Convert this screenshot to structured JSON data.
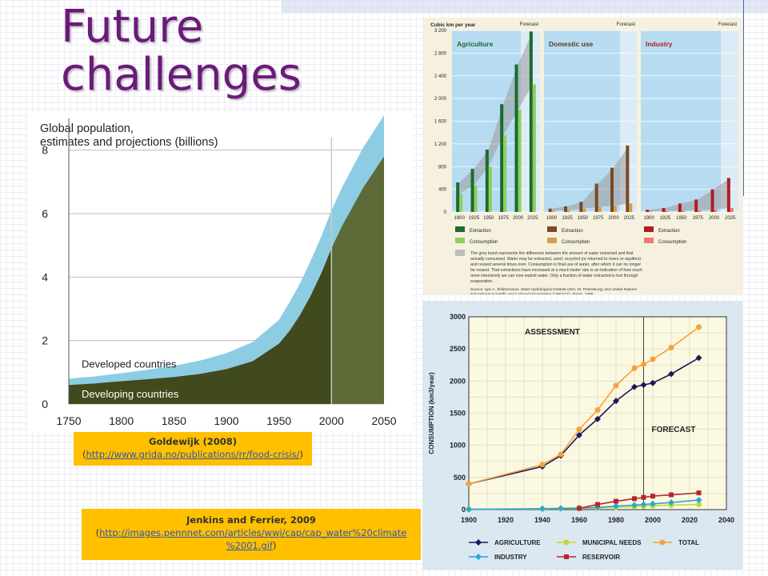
{
  "slide": {
    "title_line1": "Future",
    "title_line2": "challenges",
    "caption1": {
      "author": "Goldewijk (2008)",
      "open": "(",
      "link": "http://www.grida.no/publications/rr/food-crisis/",
      "close": ")"
    },
    "caption2": {
      "author": "Jenkins and Ferrier, 2009",
      "open": "(",
      "link_line1": "http://images.pennnet.com/articles/wwi/cap/cap_water%20climate",
      "link_line2": "%2001.gif",
      "close": ")"
    }
  },
  "chart_data": [
    {
      "type": "area",
      "title": "Global population,",
      "subtitle": "estimates and projections (billions)",
      "x": [
        1750,
        1775,
        1800,
        1825,
        1850,
        1875,
        1900,
        1925,
        1950,
        1960,
        1970,
        1980,
        1990,
        2000,
        2010,
        2020,
        2030,
        2040,
        2050
      ],
      "series": [
        {
          "name": "Developing countries",
          "values": [
            0.6,
            0.65,
            0.72,
            0.78,
            0.85,
            0.95,
            1.1,
            1.35,
            1.9,
            2.3,
            2.8,
            3.4,
            4.1,
            4.9,
            5.6,
            6.2,
            6.8,
            7.3,
            7.8
          ]
        },
        {
          "name": "Developed countries",
          "values": [
            0.2,
            0.22,
            0.25,
            0.3,
            0.35,
            0.42,
            0.5,
            0.6,
            0.75,
            0.9,
            1.0,
            1.1,
            1.15,
            1.2,
            1.22,
            1.25,
            1.27,
            1.28,
            1.3
          ]
        }
      ],
      "xticks": [
        "1750",
        "1800",
        "1850",
        "1900",
        "1950",
        "2000",
        "2050"
      ],
      "yticks": [
        "0",
        "2",
        "4",
        "6",
        "8"
      ],
      "ylim": [
        0,
        9
      ],
      "forecast_from": 2000,
      "colors": {
        "developing": "#404a1c",
        "developed": "#8ccde4",
        "forecast_shade": "#5d6a38"
      }
    },
    {
      "type": "bar",
      "ylabel": "Cubic km per year",
      "forecast_label": "Forecast",
      "categories": [
        "1900",
        "1925",
        "1950",
        "1975",
        "2000",
        "2025"
      ],
      "yticks": [
        "0",
        "400",
        "800",
        "1 200",
        "1 600",
        "2 000",
        "2 400",
        "2 800",
        "3 200"
      ],
      "ylim": [
        0,
        3200
      ],
      "panels": [
        {
          "name": "Agriculture",
          "extraction": [
            520,
            760,
            1100,
            1900,
            2600,
            3180
          ],
          "consumption": [
            320,
            470,
            800,
            1350,
            1800,
            2250
          ],
          "colors": [
            "#1a6b2e",
            "#8fcf5a"
          ],
          "label_color": "#1a6b2e"
        },
        {
          "name": "Domestic use",
          "extraction": [
            60,
            100,
            180,
            500,
            780,
            1170
          ],
          "consumption": [
            20,
            30,
            60,
            90,
            110,
            150
          ],
          "colors": [
            "#7a4a24",
            "#d89b4a"
          ],
          "label_color": "#5a3a1a"
        },
        {
          "name": "Industry",
          "extraction": [
            40,
            70,
            150,
            220,
            400,
            600
          ],
          "consumption": [
            10,
            15,
            20,
            30,
            45,
            70
          ],
          "colors": [
            "#b01c24",
            "#ef7a74"
          ],
          "label_color": "#b01c24"
        }
      ],
      "legend": {
        "extraction": "Extraction",
        "consumption": "Consumption",
        "note": "The grey band represents the difference between the amount of water extracted and that actually consumed. Water may be extracted, used, recycled (or returned to rivers or aquifers) and reused several times over. Consumption is final use of water, after which it can no longer be reused. That extractions have increased at a much faster rate is an indication of how much more intensively we can now exploit water. Only a fraction of water extracted is lost through evaporation.",
        "source": "Source: Igor A. Shiklomanov, State Hydrological Institute (SHI, St. Petersburg) and United Nations Educational,Scientific and Cultural Organisation (UNESCO, Paris), 1999."
      }
    },
    {
      "type": "line",
      "ylabel": "CONSUMPTION (km3/year)",
      "annotations": [
        "ASSESSMENT",
        "FORECAST"
      ],
      "xlim": [
        1900,
        2040
      ],
      "ylim": [
        0,
        3000
      ],
      "xticks": [
        "1900",
        "1920",
        "1940",
        "1960",
        "1980",
        "2000",
        "2020",
        "2040"
      ],
      "yticks": [
        "0",
        "500",
        "1000",
        "1500",
        "2000",
        "2500",
        "3000"
      ],
      "forecast_from": 1995,
      "series": [
        {
          "name": "AGRICULTURE",
          "x": [
            1900,
            1940,
            1950,
            1960,
            1970,
            1980,
            1990,
            1995,
            2000,
            2010,
            2025
          ],
          "values": [
            400,
            670,
            840,
            1160,
            1410,
            1690,
            1910,
            1940,
            1970,
            2110,
            2360
          ],
          "color": "#1a1a5e",
          "marker": "diamond"
        },
        {
          "name": "MUNICIPAL NEEDS",
          "x": [
            1900,
            1940,
            1950,
            1960,
            1970,
            1980,
            1990,
            1995,
            2000,
            2010,
            2025
          ],
          "values": [
            5,
            10,
            15,
            20,
            25,
            35,
            45,
            55,
            60,
            70,
            80
          ],
          "color": "#c6d63a",
          "marker": "circle"
        },
        {
          "name": "TOTAL",
          "x": [
            1900,
            1940,
            1950,
            1960,
            1970,
            1980,
            1990,
            1995,
            2000,
            2010,
            2025
          ],
          "values": [
            400,
            700,
            860,
            1250,
            1550,
            1930,
            2200,
            2260,
            2340,
            2520,
            2840
          ],
          "color": "#f5a23a",
          "marker": "circle"
        },
        {
          "name": "INDUSTRY",
          "x": [
            1900,
            1940,
            1950,
            1960,
            1970,
            1980,
            1990,
            1995,
            2000,
            2010,
            2025
          ],
          "values": [
            5,
            15,
            20,
            25,
            35,
            55,
            70,
            80,
            90,
            110,
            150
          ],
          "color": "#26a9d6",
          "marker": "diamond"
        },
        {
          "name": "RESERVOIR",
          "x": [
            1960,
            1970,
            1980,
            1990,
            1995,
            2000,
            2010,
            2025
          ],
          "values": [
            20,
            80,
            130,
            170,
            190,
            210,
            230,
            260
          ],
          "color": "#b5262d",
          "marker": "square"
        }
      ]
    }
  ]
}
